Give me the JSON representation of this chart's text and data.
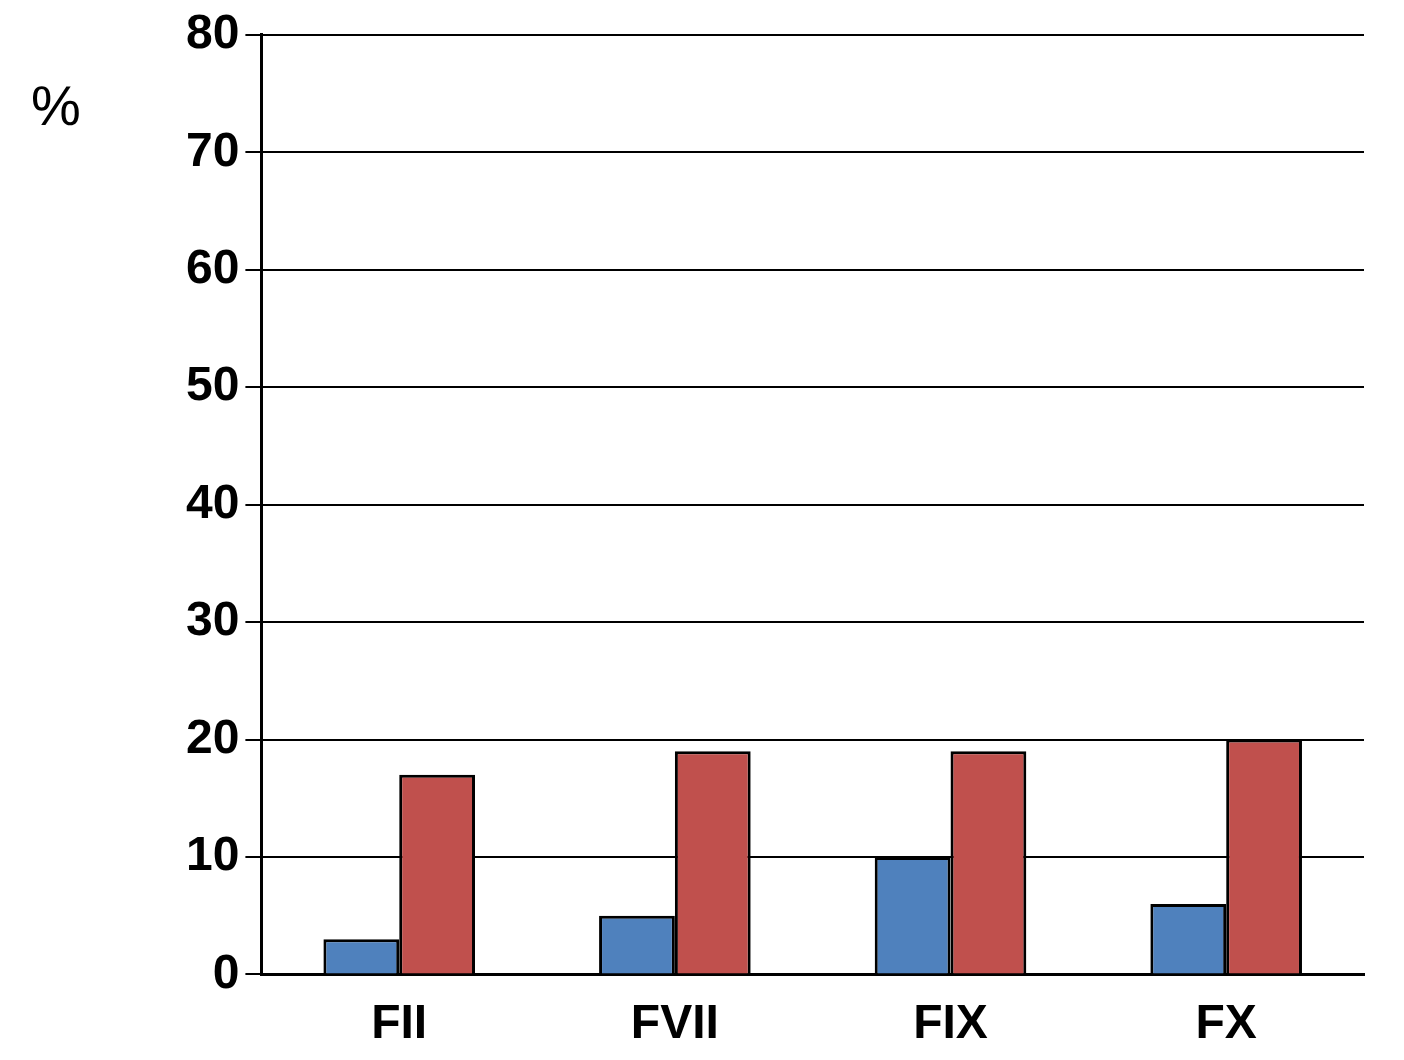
{
  "chart_data": {
    "type": "bar",
    "ylabel": "%",
    "categories": [
      "FII",
      "FVII",
      "FIX",
      "FX"
    ],
    "series": [
      {
        "color": "#4f81bd",
        "values": [
          3,
          5,
          10,
          6
        ]
      },
      {
        "color": "#c0504d",
        "values": [
          17,
          19,
          19,
          20
        ]
      }
    ],
    "ylim": [
      0,
      80
    ],
    "yticks": [
      0,
      10,
      20,
      30,
      40,
      50,
      60,
      70,
      80
    ],
    "grid": "y",
    "legend": false
  }
}
